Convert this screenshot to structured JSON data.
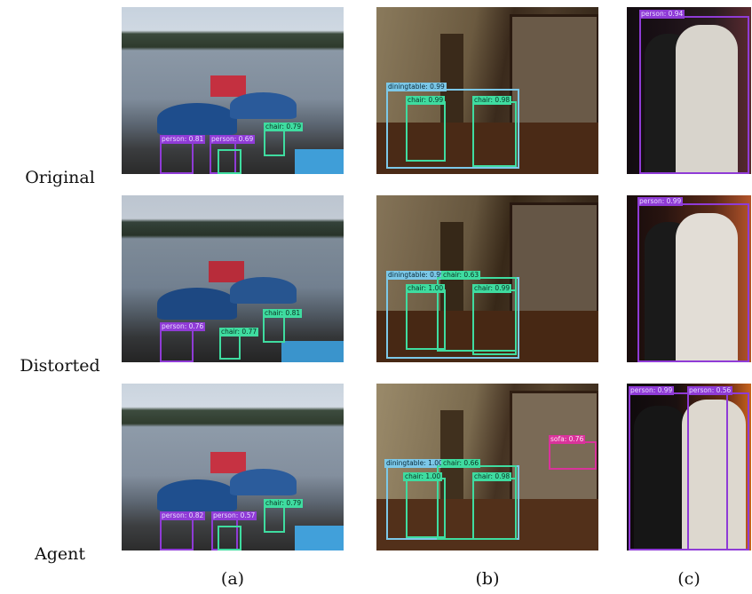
{
  "rows": [
    "Original",
    "Distorted",
    "Agent"
  ],
  "columns": [
    "(a)",
    "(b)",
    "(c)"
  ],
  "detections": {
    "original": {
      "a": [
        "person: 0.81",
        "person: 0.69",
        "chair: 0.79"
      ],
      "b": [
        "diningtable: 0.99",
        "chair: 0.99",
        "chair: 0.98"
      ],
      "c": [
        "person: 0.94"
      ]
    },
    "distorted": {
      "a": [
        "person: 0.76",
        "chair: 0.77",
        "chair: 0.81"
      ],
      "b": [
        "diningtable: 0.99",
        "chair: 0.63",
        "chair: 1.00",
        "chair: 0.99"
      ],
      "c": [
        "person: 0.99"
      ]
    },
    "agent": {
      "a": [
        "person: 0.82",
        "person: 0.57",
        "chair: 0.79"
      ],
      "b": [
        "diningtable: 1.00",
        "chair: 0.66",
        "chair: 1.00",
        "chair: 0.98",
        "sofa: 0.76"
      ],
      "c": [
        "person: 0.99",
        "person: 0.56"
      ]
    }
  },
  "colors": {
    "person": "#8f3bd6",
    "chair": "#3fdca0",
    "diningtable": "#7cc8e8",
    "sofa": "#d9339b"
  }
}
